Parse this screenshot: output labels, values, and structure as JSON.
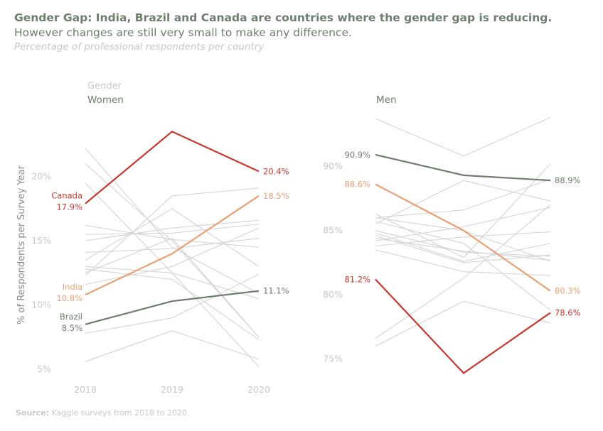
{
  "title": "Gender Gap: India, Brazil and Canada are countries where the gender gap is reducing.",
  "subtitle": "However changes are still very small to make any difference.",
  "caption": "Percentage of professional respondents per country",
  "source_label": "Source:",
  "source_text": "Kaggle surveys from 2018 to 2020.",
  "colors": {
    "canada": "#c8372d",
    "india": "#e9a075",
    "brazil": "#6e7d6e",
    "context": "#d3d3d3",
    "axis_text": "#c8c8c8",
    "panel_title": "#6e7d6e"
  },
  "chart_data": {
    "type": "line",
    "legend_title": "Gender",
    "ylabel": "% of Respondents per Survey Year",
    "x": [
      "2018",
      "2019",
      "2020"
    ],
    "panels": [
      {
        "name": "Women",
        "ylim": [
          3.9,
          24.9
        ],
        "yticks": [
          5,
          10,
          15,
          20
        ],
        "ytick_labels": [
          "5%",
          "10%",
          "15%",
          "20%"
        ],
        "highlight": [
          {
            "name": "Canada",
            "color_key": "canada",
            "values": [
              17.9,
              23.5,
              20.4
            ],
            "start_label": "17.9%",
            "end_label": "20.4%"
          },
          {
            "name": "India",
            "color_key": "india",
            "values": [
              10.8,
              14.0,
              18.5
            ],
            "start_label": "10.8%",
            "end_label": "18.5%"
          },
          {
            "name": "Brazil",
            "color_key": "brazil",
            "values": [
              8.5,
              10.3,
              11.1
            ],
            "start_label": "8.5%",
            "end_label": "11.1%"
          }
        ],
        "context": [
          [
            22.2,
            14.5,
            10.9
          ],
          [
            21.0,
            15.0,
            7.5
          ],
          [
            19.5,
            12.5,
            5.2
          ],
          [
            16.2,
            15.1,
            14.5
          ],
          [
            15.5,
            15.6,
            16.3
          ],
          [
            14.1,
            14.4,
            15.2
          ],
          [
            13.5,
            17.5,
            13.0
          ],
          [
            12.5,
            15.2,
            7.5
          ],
          [
            12.3,
            18.5,
            19.1
          ],
          [
            13.0,
            12.5,
            10.5
          ],
          [
            11.6,
            13.0,
            16.0
          ],
          [
            7.8,
            9.0,
            12.4
          ],
          [
            5.6,
            8.0,
            5.8
          ],
          [
            15.0,
            16.0,
            16.6
          ],
          [
            12.8,
            12.0,
            7.3
          ]
        ]
      },
      {
        "name": "Men",
        "ylim": [
          73.1,
          94.1
        ],
        "yticks": [
          75,
          80,
          85,
          90
        ],
        "ytick_labels": [
          "75%",
          "80%",
          "85%",
          "90%"
        ],
        "highlight": [
          {
            "name": "Brazil",
            "color_key": "brazil",
            "values": [
              90.9,
              89.3,
              88.9
            ],
            "start_label": "90.9%",
            "end_label": "88.9%"
          },
          {
            "name": "India",
            "color_key": "india",
            "values": [
              88.6,
              85.0,
              80.3
            ],
            "start_label": "88.6%",
            "end_label": "80.3%"
          },
          {
            "name": "Canada",
            "color_key": "canada",
            "values": [
              81.2,
              73.9,
              78.6
            ],
            "start_label": "81.2%",
            "end_label": "78.6%"
          }
        ],
        "context": [
          [
            93.7,
            90.8,
            93.8
          ],
          [
            86.0,
            86.6,
            89.0
          ],
          [
            85.5,
            88.9,
            87.3
          ],
          [
            84.8,
            82.6,
            84.0
          ],
          [
            84.2,
            85.3,
            86.8
          ],
          [
            86.3,
            82.9,
            90.2
          ],
          [
            85.0,
            83.3,
            83.0
          ],
          [
            84.4,
            83.4,
            82.7
          ],
          [
            83.8,
            84.5,
            84.9
          ],
          [
            76.6,
            81.3,
            87.0
          ],
          [
            76.0,
            79.5,
            77.8
          ],
          [
            83.5,
            81.8,
            81.5
          ],
          [
            86.0,
            85.0,
            82.6
          ],
          [
            85.7,
            84.0,
            78.8
          ],
          [
            84.6,
            82.5,
            83.1
          ]
        ]
      }
    ]
  }
}
